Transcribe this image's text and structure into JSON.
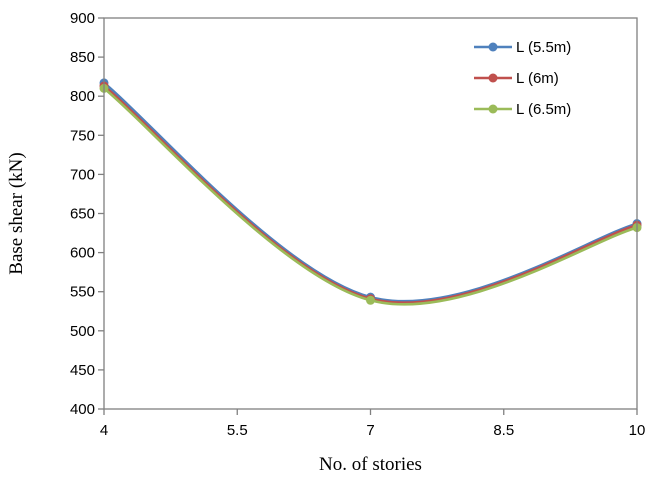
{
  "chart_data": {
    "type": "line",
    "title": "",
    "xlabel": "No. of stories",
    "ylabel": "Base shear (kN)",
    "x_ticks": [
      "4",
      "5.5",
      "7",
      "8.5",
      "10"
    ],
    "y_ticks": [
      "400",
      "450",
      "500",
      "550",
      "600",
      "650",
      "700",
      "750",
      "800",
      "850",
      "900"
    ],
    "xlim": [
      4,
      10
    ],
    "ylim": [
      400,
      900
    ],
    "grid": false,
    "smooth": true,
    "legend_position": "top-right",
    "x": [
      4,
      7,
      10
    ],
    "series": [
      {
        "name": "L (5.5m)",
        "color": "#4f81bd",
        "values": [
          817,
          543,
          637
        ]
      },
      {
        "name": "L (6m)",
        "color": "#c0504d",
        "values": [
          813,
          541,
          635
        ]
      },
      {
        "name": "L (6.5m)",
        "color": "#9bbb59",
        "values": [
          810,
          539,
          632
        ]
      }
    ]
  }
}
